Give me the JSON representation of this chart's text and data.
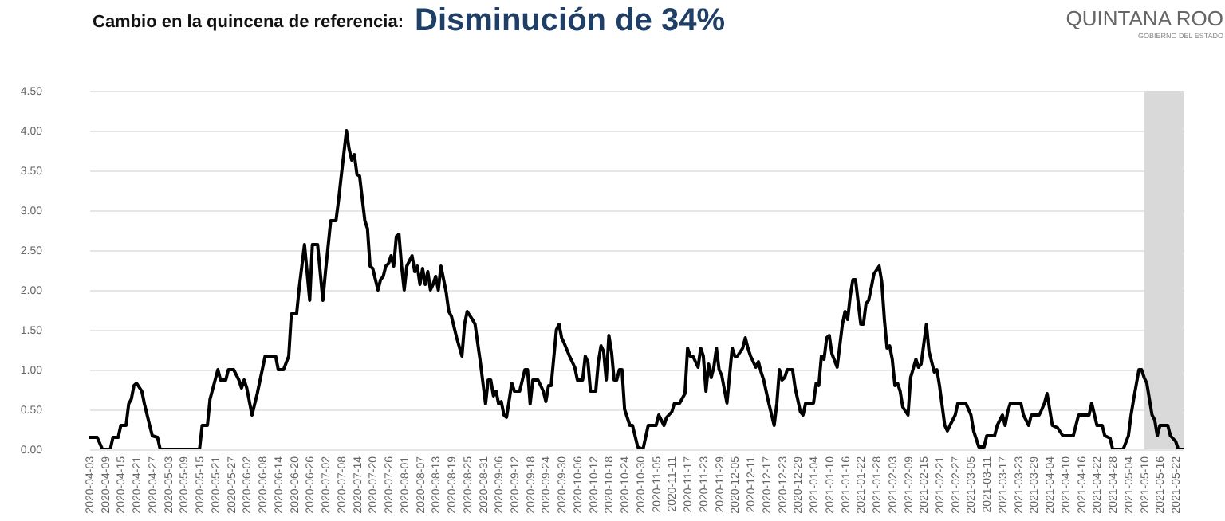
{
  "chart_data": {
    "type": "line",
    "title": "Cambio en la quincena de referencia:",
    "subtitle": "Disminución de 34%",
    "annotations": [
      "QUINTANA ROO",
      "GOBIERNO DEL ESTADO"
    ],
    "x": [
      "2020-04-03",
      "2020-04-06",
      "2020-04-08",
      "2020-04-11",
      "2020-04-12",
      "2020-04-14",
      "2020-04-15",
      "2020-04-17",
      "2020-04-18",
      "2020-04-19",
      "2020-04-20",
      "2020-04-21",
      "2020-04-23",
      "2020-04-24",
      "2020-04-26",
      "2020-04-27",
      "2020-04-29",
      "2020-04-30",
      "2020-05-15",
      "2020-05-16",
      "2020-05-18",
      "2020-05-19",
      "2020-05-22",
      "2020-05-23",
      "2020-05-25",
      "2020-05-26",
      "2020-05-28",
      "2020-05-30",
      "2020-05-31",
      "2020-06-01",
      "2020-06-02",
      "2020-06-04",
      "2020-06-06",
      "2020-06-09",
      "2020-06-13",
      "2020-06-14",
      "2020-06-16",
      "2020-06-18",
      "2020-06-19",
      "2020-06-21",
      "2020-06-22",
      "2020-06-24",
      "2020-06-26",
      "2020-06-27",
      "2020-06-29",
      "2020-07-01",
      "2020-07-02",
      "2020-07-04",
      "2020-07-06",
      "2020-07-07",
      "2020-07-08",
      "2020-07-10",
      "2020-07-11",
      "2020-07-12",
      "2020-07-13",
      "2020-07-14",
      "2020-07-15",
      "2020-07-17",
      "2020-07-18",
      "2020-07-19",
      "2020-07-20",
      "2020-07-22",
      "2020-07-23",
      "2020-07-24",
      "2020-07-25",
      "2020-07-26",
      "2020-07-27",
      "2020-07-28",
      "2020-07-29",
      "2020-07-30",
      "2020-07-31",
      "2020-08-01",
      "2020-08-02",
      "2020-08-04",
      "2020-08-05",
      "2020-08-06",
      "2020-08-07",
      "2020-08-08",
      "2020-08-09",
      "2020-08-10",
      "2020-08-11",
      "2020-08-12",
      "2020-08-13",
      "2020-08-14",
      "2020-08-15",
      "2020-08-17",
      "2020-08-18",
      "2020-08-19",
      "2020-08-21",
      "2020-08-23",
      "2020-08-24",
      "2020-08-25",
      "2020-08-27",
      "2020-08-28",
      "2020-08-30",
      "2020-09-01",
      "2020-09-02",
      "2020-09-03",
      "2020-09-04",
      "2020-09-05",
      "2020-09-06",
      "2020-09-07",
      "2020-09-08",
      "2020-09-09",
      "2020-09-11",
      "2020-09-12",
      "2020-09-14",
      "2020-09-16",
      "2020-09-17",
      "2020-09-18",
      "2020-09-19",
      "2020-09-21",
      "2020-09-23",
      "2020-09-24",
      "2020-09-25",
      "2020-09-26",
      "2020-09-28",
      "2020-09-29",
      "2020-09-30",
      "2020-10-01",
      "2020-10-03",
      "2020-10-05",
      "2020-10-06",
      "2020-10-08",
      "2020-10-09",
      "2020-10-10",
      "2020-10-11",
      "2020-10-13",
      "2020-10-14",
      "2020-10-15",
      "2020-10-16",
      "2020-10-17",
      "2020-10-18",
      "2020-10-19",
      "2020-10-20",
      "2020-10-21",
      "2020-10-22",
      "2020-10-23",
      "2020-10-24",
      "2020-10-26",
      "2020-10-27",
      "2020-10-29",
      "2020-10-31",
      "2020-11-02",
      "2020-11-05",
      "2020-11-06",
      "2020-11-08",
      "2020-11-09",
      "2020-11-11",
      "2020-11-12",
      "2020-11-14",
      "2020-11-16",
      "2020-11-17",
      "2020-11-18",
      "2020-11-19",
      "2020-11-21",
      "2020-11-22",
      "2020-11-23",
      "2020-11-24",
      "2020-11-25",
      "2020-11-26",
      "2020-11-27",
      "2020-11-28",
      "2020-11-29",
      "2020-11-30",
      "2020-12-02",
      "2020-12-04",
      "2020-12-05",
      "2020-12-06",
      "2020-12-08",
      "2020-12-09",
      "2020-12-10",
      "2020-12-11",
      "2020-12-13",
      "2020-12-14",
      "2020-12-15",
      "2020-12-16",
      "2020-12-18",
      "2020-12-20",
      "2020-12-21",
      "2020-12-22",
      "2020-12-23",
      "2020-12-24",
      "2020-12-25",
      "2020-12-27",
      "2020-12-28",
      "2020-12-30",
      "2020-12-31",
      "2021-01-01",
      "2021-01-04",
      "2021-01-05",
      "2021-01-06",
      "2021-01-07",
      "2021-01-08",
      "2021-01-09",
      "2021-01-10",
      "2021-01-11",
      "2021-01-13",
      "2021-01-15",
      "2021-01-16",
      "2021-01-17",
      "2021-01-18",
      "2021-01-19",
      "2021-01-20",
      "2021-01-22",
      "2021-01-23",
      "2021-01-24",
      "2021-01-25",
      "2021-01-26",
      "2021-01-27",
      "2021-01-29",
      "2021-01-30",
      "2021-01-31",
      "2021-02-01",
      "2021-02-02",
      "2021-02-03",
      "2021-02-04",
      "2021-02-05",
      "2021-02-06",
      "2021-02-07",
      "2021-02-09",
      "2021-02-10",
      "2021-02-12",
      "2021-02-13",
      "2021-02-14",
      "2021-02-16",
      "2021-02-17",
      "2021-02-19",
      "2021-02-20",
      "2021-02-21",
      "2021-02-23",
      "2021-02-24",
      "2021-02-25",
      "2021-02-27",
      "2021-02-28",
      "2021-03-03",
      "2021-03-05",
      "2021-03-06",
      "2021-03-08",
      "2021-03-10",
      "2021-03-11",
      "2021-03-14",
      "2021-03-15",
      "2021-03-17",
      "2021-03-18",
      "2021-03-19",
      "2021-03-20",
      "2021-03-24",
      "2021-03-25",
      "2021-03-27",
      "2021-03-28",
      "2021-03-31",
      "2021-04-01",
      "2021-04-02",
      "2021-04-03",
      "2021-04-04",
      "2021-04-05",
      "2021-04-07",
      "2021-04-09",
      "2021-04-13",
      "2021-04-15",
      "2021-04-19",
      "2021-04-20",
      "2021-04-22",
      "2021-04-24",
      "2021-04-25",
      "2021-04-27",
      "2021-04-28",
      "2021-05-02",
      "2021-05-04",
      "2021-05-05",
      "2021-05-06",
      "2021-05-08",
      "2021-05-09",
      "2021-05-10",
      "2021-05-11",
      "2021-05-12",
      "2021-05-13",
      "2021-05-14",
      "2021-05-15",
      "2021-05-16",
      "2021-05-19",
      "2021-05-20",
      "2021-05-22",
      "2021-05-23",
      "2021-05-25"
    ],
    "series": [
      {
        "color": "#000000",
        "values": [
          0.15,
          0.15,
          0,
          0,
          0.15,
          0.15,
          0.3,
          0.3,
          0.57,
          0.63,
          0.8,
          0.83,
          0.73,
          0.57,
          0.3,
          0.17,
          0.15,
          0,
          0,
          0.3,
          0.3,
          0.63,
          1.0,
          0.87,
          0.87,
          1.0,
          1.0,
          0.87,
          0.77,
          0.87,
          0.77,
          0.43,
          0.7,
          1.17,
          1.17,
          1.0,
          1.0,
          1.17,
          1.7,
          1.7,
          2.03,
          2.57,
          1.87,
          2.57,
          2.57,
          1.87,
          2.23,
          2.87,
          2.87,
          3.13,
          3.43,
          4.0,
          3.77,
          3.63,
          3.7,
          3.45,
          3.43,
          2.87,
          2.77,
          2.3,
          2.27,
          2.0,
          2.13,
          2.17,
          2.3,
          2.33,
          2.43,
          2.3,
          2.67,
          2.7,
          2.3,
          2.0,
          2.3,
          2.43,
          2.23,
          2.3,
          2.07,
          2.27,
          2.07,
          2.23,
          2.0,
          2.07,
          2.17,
          2.0,
          2.3,
          1.97,
          1.73,
          1.67,
          1.4,
          1.17,
          1.57,
          1.73,
          1.63,
          1.57,
          1.1,
          0.57,
          0.87,
          0.87,
          0.67,
          0.73,
          0.57,
          0.6,
          0.43,
          0.4,
          0.83,
          0.73,
          0.73,
          1.0,
          1.0,
          0.57,
          0.87,
          0.87,
          0.73,
          0.6,
          0.8,
          0.8,
          1.5,
          1.57,
          1.4,
          1.33,
          1.17,
          1.03,
          0.87,
          0.87,
          1.17,
          1.1,
          0.73,
          0.73,
          1.1,
          1.3,
          1.23,
          0.87,
          1.43,
          1.23,
          0.87,
          0.87,
          1.0,
          1.0,
          0.5,
          0.3,
          0.3,
          0.03,
          0,
          0.3,
          0.3,
          0.43,
          0.3,
          0.4,
          0.47,
          0.58,
          0.58,
          0.7,
          1.27,
          1.17,
          1.17,
          1.03,
          1.27,
          1.17,
          0.73,
          1.07,
          0.9,
          1.03,
          1.27,
          1.0,
          0.93,
          0.58,
          1.27,
          1.17,
          1.17,
          1.27,
          1.4,
          1.27,
          1.17,
          1.03,
          1.1,
          0.97,
          0.87,
          0.57,
          0.3,
          0.57,
          1.0,
          0.87,
          0.9,
          1.0,
          1.0,
          0.77,
          0.47,
          0.43,
          0.58,
          0.58,
          0.83,
          0.8,
          1.17,
          1.13,
          1.4,
          1.43,
          1.2,
          1.03,
          1.57,
          1.73,
          1.63,
          1.93,
          2.13,
          2.13,
          1.57,
          1.57,
          1.83,
          1.87,
          2.03,
          2.2,
          2.3,
          2.1,
          1.63,
          1.27,
          1.3,
          1.13,
          0.8,
          0.83,
          0.73,
          0.53,
          0.43,
          0.9,
          1.13,
          1.03,
          1.07,
          1.57,
          1.23,
          0.97,
          1.0,
          0.8,
          0.3,
          0.23,
          0.3,
          0.43,
          0.58,
          0.58,
          0.43,
          0.23,
          0.03,
          0.03,
          0.17,
          0.17,
          0.3,
          0.43,
          0.3,
          0.47,
          0.58,
          0.58,
          0.43,
          0.3,
          0.43,
          0.43,
          0.5,
          0.58,
          0.7,
          0.5,
          0.3,
          0.27,
          0.17,
          0.17,
          0.43,
          0.43,
          0.58,
          0.3,
          0.3,
          0.17,
          0.14,
          0,
          0,
          0.17,
          0.43,
          0.63,
          1.0,
          1.0,
          0.9,
          0.83,
          0.63,
          0.43,
          0.37,
          0.17,
          0.3,
          0.3,
          0.17,
          0.1,
          0,
          0
        ]
      }
    ],
    "xlim": [
      "2020-04-03",
      "2021-05-25"
    ],
    "xticks": [
      "2020-04-03",
      "2020-04-09",
      "2020-04-15",
      "2020-04-21",
      "2020-04-27",
      "2020-05-03",
      "2020-05-09",
      "2020-05-15",
      "2020-05-21",
      "2020-05-27",
      "2020-06-02",
      "2020-06-08",
      "2020-06-14",
      "2020-06-20",
      "2020-06-26",
      "2020-07-02",
      "2020-07-08",
      "2020-07-14",
      "2020-07-20",
      "2020-07-26",
      "2020-08-01",
      "2020-08-07",
      "2020-08-13",
      "2020-08-19",
      "2020-08-25",
      "2020-08-31",
      "2020-09-06",
      "2020-09-12",
      "2020-09-18",
      "2020-09-24",
      "2020-09-30",
      "2020-10-06",
      "2020-10-12",
      "2020-10-18",
      "2020-10-24",
      "2020-10-30",
      "2020-11-05",
      "2020-11-11",
      "2020-11-17",
      "2020-11-23",
      "2020-11-29",
      "2020-12-05",
      "2020-12-11",
      "2020-12-17",
      "2020-12-23",
      "2020-12-29",
      "2021-01-04",
      "2021-01-10",
      "2021-01-16",
      "2021-01-22",
      "2021-01-28",
      "2021-02-03",
      "2021-02-09",
      "2021-02-15",
      "2021-02-21",
      "2021-02-27",
      "2021-03-05",
      "2021-03-11",
      "2021-03-17",
      "2021-03-23",
      "2021-03-29",
      "2021-04-04",
      "2021-04-10",
      "2021-04-16",
      "2021-04-22",
      "2021-04-28",
      "2021-05-04",
      "2021-05-10",
      "2021-05-16",
      "2021-05-22"
    ],
    "ylim": [
      0,
      4.5
    ],
    "yticks": [
      {
        "value": 0,
        "label": "0.00"
      },
      {
        "value": 0.5,
        "label": "0.50"
      },
      {
        "value": 1,
        "label": "1.00"
      },
      {
        "value": 1.5,
        "label": "1.50"
      },
      {
        "value": 2,
        "label": "2.00"
      },
      {
        "value": 2.5,
        "label": "2.50"
      },
      {
        "value": 3,
        "label": "3.00"
      },
      {
        "value": 3.5,
        "label": "3.50"
      },
      {
        "value": 4,
        "label": "4.00"
      },
      {
        "value": 4.5,
        "label": "4.50"
      }
    ],
    "bands": [
      {
        "axis": "x",
        "from": "2021-05-10",
        "to": "2021-05-25",
        "color": "#d9d9d9"
      }
    ],
    "grid": "y",
    "line_style": "solid",
    "marker": "none"
  }
}
